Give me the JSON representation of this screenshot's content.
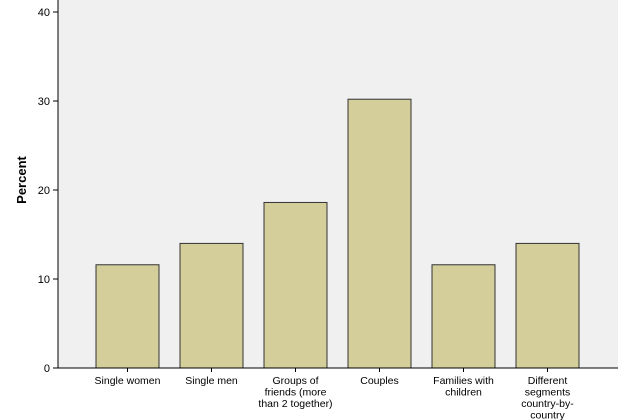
{
  "chart_data": {
    "type": "bar",
    "title": "",
    "xlabel": "",
    "ylabel": "Percent",
    "ylim": [
      0,
      40
    ],
    "yticks": [
      0,
      10,
      20,
      30,
      40
    ],
    "grid": false,
    "categories": [
      [
        "Single women"
      ],
      [
        "Single men"
      ],
      [
        "Groups of",
        "friends (more",
        "than 2 together)"
      ],
      [
        "Couples"
      ],
      [
        "Families with",
        "children"
      ],
      [
        "Different",
        "segments",
        "country-by-",
        "country"
      ]
    ],
    "values": [
      11.6,
      14.0,
      18.6,
      30.2,
      11.6,
      14.0
    ],
    "colors": {
      "bar_fill": "#d3ce9a",
      "bar_stroke": "#333333",
      "plot_background": "#f0f0f0",
      "axis": "#000000"
    }
  }
}
